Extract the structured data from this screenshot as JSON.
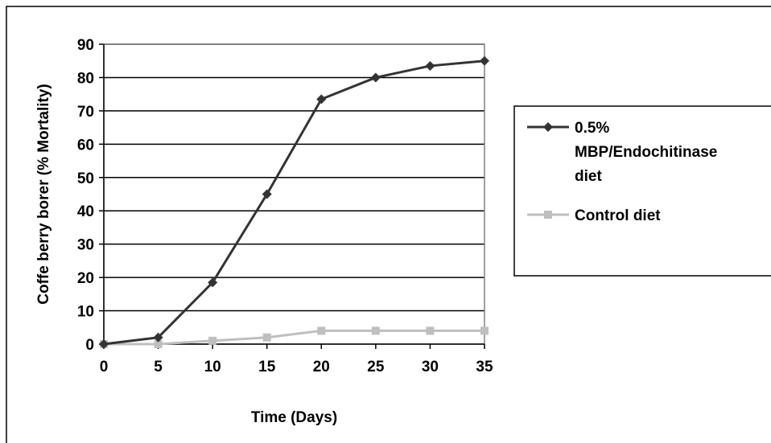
{
  "chart_data": {
    "type": "line",
    "title": "",
    "xlabel": "Time (Days)",
    "ylabel": "Coffe berry borer (% Mortality)",
    "x": [
      0,
      5,
      10,
      15,
      20,
      25,
      30,
      35
    ],
    "xlim": [
      0,
      35
    ],
    "ylim": [
      0,
      90
    ],
    "yticks": [
      0,
      10,
      20,
      30,
      40,
      50,
      60,
      70,
      80,
      90
    ],
    "grid": "horizontal",
    "legend_position": "right",
    "series": [
      {
        "name": "0.5% MBP/Endochitinase diet",
        "name_lines": [
          "0.5%",
          "MBP/Endochitinase",
          "diet"
        ],
        "marker": "diamond",
        "color": "#333333",
        "values": [
          0,
          2,
          18.5,
          45,
          73.5,
          80,
          83.5,
          85
        ]
      },
      {
        "name": "Control diet",
        "name_lines": [
          "Control diet"
        ],
        "marker": "square",
        "color": "#bfbfbf",
        "values": [
          0,
          0,
          1,
          2,
          4,
          4,
          4,
          4
        ]
      }
    ]
  }
}
